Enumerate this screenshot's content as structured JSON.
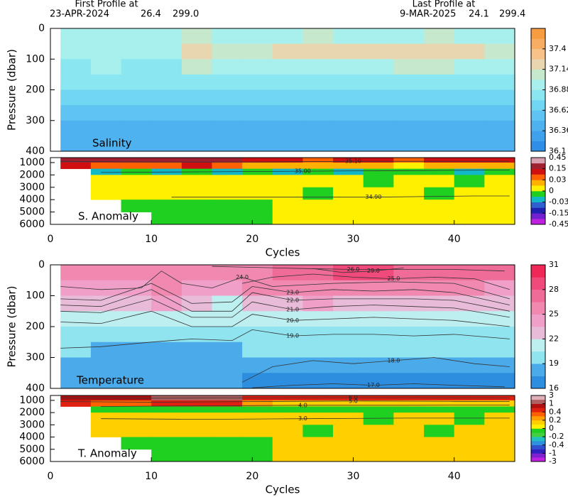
{
  "header": {
    "first": {
      "title": "First Profile at",
      "date": "23-APR-2024",
      "lat": "26.4",
      "lon": "299.0"
    },
    "last": {
      "title": "Last Profile at",
      "date": "9-MAR-2025",
      "lat": "24.1",
      "lon": "299.4"
    }
  },
  "chart_data": [
    {
      "type": "heatmap",
      "label": "Salinity",
      "ylabel": "Pressure (dbar)",
      "xlim": [
        0,
        46
      ],
      "ylim": [
        400,
        0
      ],
      "yticks": [
        0,
        100,
        200,
        300,
        400
      ],
      "xbins": [
        1,
        4,
        7,
        10,
        13,
        16,
        19,
        22,
        25,
        28,
        31,
        34,
        37,
        40,
        43,
        46
      ],
      "ybins": [
        0,
        50,
        100,
        150,
        200,
        250,
        300,
        350,
        400
      ],
      "values": [
        [
          36.92,
          36.92,
          36.92,
          36.9,
          37.05,
          37.0,
          36.9,
          36.95,
          37.05,
          37.0,
          36.95,
          36.9,
          37.05,
          37.0,
          36.95
        ],
        [
          36.92,
          36.92,
          36.95,
          36.9,
          37.15,
          37.1,
          37.1,
          37.15,
          37.2,
          37.2,
          37.15,
          37.25,
          37.2,
          37.2,
          37.1
        ],
        [
          36.85,
          36.88,
          36.85,
          36.8,
          37.05,
          37.0,
          36.95,
          36.95,
          37.0,
          37.0,
          37.0,
          37.05,
          37.05,
          37.0,
          36.95
        ],
        [
          36.78,
          36.78,
          36.78,
          36.75,
          36.85,
          36.8,
          36.78,
          36.78,
          36.8,
          36.8,
          36.8,
          36.82,
          36.82,
          36.8,
          36.78
        ],
        [
          36.7,
          36.7,
          36.7,
          36.68,
          36.72,
          36.7,
          36.62,
          36.62,
          36.62,
          36.64,
          36.62,
          36.64,
          36.64,
          36.62,
          36.62
        ],
        [
          36.58,
          36.58,
          36.58,
          36.58,
          36.6,
          36.58,
          36.5,
          36.5,
          36.5,
          36.52,
          36.5,
          36.52,
          36.52,
          36.5,
          36.5
        ],
        [
          36.48,
          36.48,
          36.48,
          36.48,
          36.48,
          36.48,
          36.42,
          36.42,
          36.42,
          36.42,
          36.42,
          36.44,
          36.42,
          36.42,
          36.42
        ],
        [
          36.42,
          36.42,
          36.42,
          36.42,
          36.42,
          36.42,
          36.38,
          36.38,
          36.38,
          36.38,
          36.38,
          36.38,
          36.38,
          36.38,
          36.38
        ]
      ],
      "colorbar": {
        "clim": [
          36.1,
          37.66
        ],
        "ticks": [
          36.1,
          36.36,
          36.62,
          36.88,
          37.14,
          37.4
        ],
        "colors": [
          "#2f8fe8",
          "#3fa0ec",
          "#4fb2f0",
          "#5fc4f2",
          "#70d6f2",
          "#8ae6f0",
          "#a8f0ee",
          "#c6e8cc",
          "#e8d6b0",
          "#f6c28a",
          "#f8ae62",
          "#f89c42"
        ]
      },
      "contours": []
    },
    {
      "type": "heatmap",
      "label": "S. Anomaly",
      "xlabel": "Cycles",
      "xlim": [
        0,
        46
      ],
      "xticks": [
        0,
        10,
        20,
        30,
        40
      ],
      "ylim": [
        6000,
        600
      ],
      "yticks": [
        1000,
        2000,
        3000,
        4000,
        5000,
        6000
      ],
      "xbins": [
        1,
        4,
        7,
        10,
        13,
        16,
        19,
        22,
        25,
        28,
        31,
        34,
        37,
        40,
        43,
        46
      ],
      "ybins": [
        600,
        1000,
        1500,
        2000,
        3000,
        4000,
        5000,
        6000
      ],
      "values": [
        [
          0.2,
          0.2,
          0.2,
          0.25,
          0.2,
          0.2,
          0.1,
          0.1,
          0.08,
          0.1,
          0.1,
          0.08,
          0.1,
          0.1,
          0.1
        ],
        [
          0.1,
          0.05,
          0.05,
          0.08,
          0.1,
          0.08,
          0.02,
          0.02,
          0.02,
          0.02,
          0.02,
          0.01,
          0.02,
          0.02,
          0.02
        ],
        [
          null,
          -0.02,
          -0.01,
          -0.02,
          -0.01,
          -0.02,
          -0.01,
          -0.02,
          -0.01,
          -0.02,
          -0.01,
          -0.01,
          -0.01,
          -0.02,
          -0.01
        ],
        [
          null,
          0.01,
          0.01,
          0.01,
          0.01,
          0.01,
          0.01,
          0.01,
          0.01,
          0.01,
          -0.01,
          0.01,
          0.01,
          -0.01,
          0.01
        ],
        [
          null,
          0.01,
          0.01,
          0.01,
          0.01,
          0.01,
          0.01,
          0.01,
          -0.01,
          0.01,
          0.01,
          0.01,
          -0.01,
          0.01,
          0.01
        ],
        [
          null,
          null,
          -0.01,
          -0.01,
          -0.01,
          -0.01,
          -0.01,
          0.01,
          0.01,
          0.01,
          0.01,
          0.01,
          0.01,
          0.01,
          0.01
        ],
        [
          null,
          null,
          null,
          -0.01,
          -0.01,
          -0.01,
          -0.01,
          0.01,
          0.01,
          0.01,
          0.01,
          0.01,
          0.01,
          0.01,
          0.01
        ]
      ],
      "colorbar": {
        "clim": [
          -0.45,
          0.45
        ],
        "ticks": [
          0.45,
          0.15,
          0.03,
          0,
          -0.03,
          -0.15,
          -0.45
        ],
        "colors": [
          "#c020e0",
          "#7020d0",
          "#2020b0",
          "#3060d0",
          "#10b8c8",
          "#20d020",
          "#fff000",
          "#ffb000",
          "#ff6000",
          "#d01010",
          "#a02030",
          "#d8a0b0"
        ]
      },
      "contours": [
        {
          "label": "35.10",
          "x": [
            1,
            10,
            20,
            30,
            40,
            45.5
          ],
          "y": [
            900,
            950,
            950,
            900,
            900,
            900
          ]
        },
        {
          "label": "35.00",
          "x": [
            5,
            15,
            25,
            35,
            45.5
          ],
          "y": [
            1800,
            1750,
            1700,
            1650,
            1600
          ]
        },
        {
          "label": "34.90",
          "x": [
            12,
            22,
            32,
            42,
            45.5
          ],
          "y": [
            3800,
            3800,
            3800,
            3700,
            3700
          ]
        }
      ]
    },
    {
      "type": "heatmap",
      "label": "Temperature",
      "ylabel": "Pressure (dbar)",
      "xlim": [
        0,
        46
      ],
      "ylim": [
        400,
        0
      ],
      "yticks": [
        0,
        100,
        200,
        300,
        400
      ],
      "xbins": [
        1,
        4,
        7,
        10,
        13,
        16,
        19,
        22,
        25,
        28,
        31,
        34,
        37,
        40,
        43,
        46
      ],
      "ybins": [
        0,
        50,
        100,
        150,
        200,
        250,
        300,
        350,
        400
      ],
      "values": [
        [
          25,
          25,
          25.5,
          26,
          26,
          26,
          26,
          26.5,
          27,
          28.5,
          28,
          27,
          27,
          27,
          26.5
        ],
        [
          24,
          24,
          24.5,
          25.5,
          24.5,
          24,
          25,
          25,
          25.5,
          25.5,
          25,
          25,
          25,
          25,
          24.5
        ],
        [
          22.5,
          22.5,
          23,
          24,
          22,
          21.5,
          23,
          23,
          23.5,
          23,
          22.5,
          23,
          23,
          22.5,
          22
        ],
        [
          21,
          21,
          21,
          21.5,
          20.5,
          20.5,
          21,
          21,
          21,
          21,
          21,
          21,
          21,
          21,
          20.5
        ],
        [
          20,
          20,
          20,
          20,
          19.8,
          19.8,
          20,
          20,
          20,
          20,
          20,
          20,
          20,
          20,
          20
        ],
        [
          19,
          18.8,
          18.5,
          18.5,
          18.5,
          18.5,
          19.2,
          19.2,
          19,
          19,
          19,
          19,
          19,
          19,
          19.2
        ],
        [
          18,
          18,
          18,
          18,
          18,
          18,
          17.8,
          17.5,
          17.5,
          17.5,
          17.6,
          17.5,
          17.5,
          17.6,
          17.8
        ],
        [
          17.7,
          17.7,
          17.7,
          17.7,
          17.7,
          17.7,
          17.2,
          17,
          17,
          16.9,
          17,
          16.8,
          16.9,
          17,
          17.2
        ]
      ],
      "colorbar": {
        "clim": [
          16,
          31
        ],
        "ticks": [
          16,
          19,
          22,
          25,
          28,
          31
        ],
        "colors": [
          "#2d8ee0",
          "#4aaaea",
          "#90e4f0",
          "#bdeef0",
          "#e8bcd8",
          "#f0a0c8",
          "#f088b0",
          "#f06c98",
          "#f04a7a",
          "#f02858"
        ]
      },
      "contours": [
        {
          "label": "26.0",
          "x": [
            16,
            20,
            25,
            30,
            35,
            40,
            45
          ],
          "y": [
            5,
            8,
            12,
            15,
            15,
            15,
            20
          ]
        },
        {
          "label": "29.0",
          "x": [
            26,
            29,
            32,
            35
          ],
          "y": [
            12,
            25,
            20,
            10
          ]
        },
        {
          "label": "24.0",
          "x": [
            1,
            5,
            9,
            11,
            13,
            16,
            19,
            22,
            28,
            34,
            40,
            45.5
          ],
          "y": [
            70,
            80,
            75,
            20,
            60,
            75,
            40,
            70,
            60,
            55,
            60,
            110
          ]
        },
        {
          "label": "25.0",
          "x": [
            19,
            22,
            26,
            30,
            34,
            38,
            42,
            45.5
          ],
          "y": [
            60,
            40,
            30,
            40,
            45,
            40,
            45,
            80
          ]
        },
        {
          "label": "23.0",
          "x": [
            1,
            5,
            10,
            14,
            18,
            20,
            24,
            28,
            32,
            36,
            40,
            45.5
          ],
          "y": [
            110,
            115,
            60,
            125,
            120,
            70,
            90,
            80,
            85,
            80,
            90,
            130
          ]
        },
        {
          "label": "22.0",
          "x": [
            1,
            5,
            10,
            14,
            18,
            20,
            24,
            28,
            32,
            36,
            40,
            45.5
          ],
          "y": [
            130,
            135,
            80,
            150,
            150,
            90,
            115,
            110,
            110,
            110,
            115,
            150
          ]
        },
        {
          "label": "21.0",
          "x": [
            1,
            5,
            10,
            14,
            18,
            20,
            24,
            28,
            32,
            36,
            40,
            45.5
          ],
          "y": [
            150,
            155,
            110,
            170,
            170,
            120,
            145,
            135,
            130,
            135,
            140,
            170
          ]
        },
        {
          "label": "20.0",
          "x": [
            1,
            5,
            10,
            14,
            18,
            20,
            24,
            28,
            32,
            36,
            40,
            45.5
          ],
          "y": [
            185,
            190,
            150,
            200,
            200,
            160,
            180,
            175,
            170,
            175,
            180,
            200
          ]
        },
        {
          "label": "19.0",
          "x": [
            1,
            5,
            10,
            14,
            18,
            20,
            24,
            28,
            32,
            36,
            40,
            45.5
          ],
          "y": [
            270,
            265,
            250,
            240,
            245,
            210,
            230,
            225,
            225,
            230,
            225,
            240
          ]
        },
        {
          "label": "18.0",
          "x": [
            19,
            22,
            26,
            30,
            34,
            38,
            42,
            45.5
          ],
          "y": [
            380,
            330,
            310,
            320,
            310,
            300,
            320,
            330
          ]
        },
        {
          "label": "17.0",
          "x": [
            20,
            24,
            28,
            32,
            36,
            40,
            45
          ],
          "y": [
            398,
            390,
            385,
            390,
            385,
            390,
            395
          ]
        }
      ]
    },
    {
      "type": "heatmap",
      "label": "T. Anomaly",
      "xlabel": "Cycles",
      "xlim": [
        0,
        46
      ],
      "xticks": [
        0,
        10,
        20,
        30,
        40
      ],
      "ylim": [
        6000,
        600
      ],
      "yticks": [
        1000,
        2000,
        3000,
        4000,
        5000,
        6000
      ],
      "xbins": [
        1,
        4,
        7,
        10,
        13,
        16,
        19,
        22,
        25,
        28,
        31,
        34,
        37,
        40,
        43,
        46
      ],
      "ybins": [
        600,
        1000,
        1500,
        2000,
        3000,
        4000,
        5000,
        6000
      ],
      "values": [
        [
          0.8,
          0.8,
          0.9,
          1.2,
          1.5,
          1.2,
          0.6,
          0.5,
          0.5,
          0.6,
          0.5,
          0.5,
          0.6,
          0.5,
          0.5
        ],
        [
          0.5,
          0.3,
          0.3,
          0.4,
          0.5,
          0.4,
          0.2,
          0.15,
          0.15,
          0.15,
          0.1,
          0.1,
          0.15,
          0.1,
          0.1
        ],
        [
          null,
          -0.1,
          -0.05,
          -0.1,
          -0.05,
          -0.1,
          -0.05,
          -0.1,
          -0.05,
          -0.1,
          -0.05,
          -0.05,
          -0.05,
          -0.1,
          -0.05
        ],
        [
          null,
          0.1,
          0.1,
          0.1,
          0.1,
          0.1,
          0.1,
          0.1,
          0.1,
          0.1,
          -0.05,
          0.1,
          0.1,
          -0.05,
          0.1
        ],
        [
          null,
          0.1,
          0.1,
          0.1,
          0.1,
          0.1,
          0.1,
          0.1,
          -0.05,
          0.1,
          0.1,
          0.1,
          -0.05,
          0.1,
          0.1
        ],
        [
          null,
          null,
          -0.05,
          -0.05,
          -0.05,
          -0.05,
          -0.05,
          0.1,
          0.1,
          0.1,
          0.1,
          0.1,
          0.1,
          0.1,
          0.1
        ],
        [
          null,
          null,
          null,
          -0.05,
          -0.05,
          -0.05,
          -0.05,
          0.1,
          0.1,
          0.1,
          0.1,
          0.1,
          0.1,
          0.1,
          0.1
        ]
      ],
      "colorbar": {
        "clim": [
          -3,
          3
        ],
        "ticks": [
          3,
          1,
          0.4,
          0.2,
          0,
          -0.2,
          -0.4,
          -1,
          -3
        ],
        "colors": [
          "#c020e0",
          "#8020d0",
          "#3020c0",
          "#3050d0",
          "#3090e0",
          "#20c0c0",
          "#40d040",
          "#20d020",
          "#fff000",
          "#ffd000",
          "#ffa000",
          "#ff6000",
          "#e02010",
          "#b01010",
          "#b06060",
          "#e0b0b8"
        ]
      },
      "contours": [
        {
          "label": "6.0",
          "x": [
            1,
            10,
            20,
            30,
            40,
            45.5
          ],
          "y": [
            800,
            820,
            800,
            780,
            790,
            800
          ]
        },
        {
          "label": "5.0",
          "x": [
            1,
            10,
            20,
            30,
            40,
            45.5
          ],
          "y": [
            1100,
            1150,
            1100,
            1050,
            1080,
            1100
          ]
        },
        {
          "label": "4.0",
          "x": [
            5,
            15,
            25,
            35,
            45.5
          ],
          "y": [
            1500,
            1450,
            1400,
            1400,
            1380
          ]
        },
        {
          "label": "3.0",
          "x": [
            5,
            15,
            25,
            35,
            45.5
          ],
          "y": [
            2500,
            2550,
            2500,
            2450,
            2450
          ]
        }
      ]
    }
  ]
}
